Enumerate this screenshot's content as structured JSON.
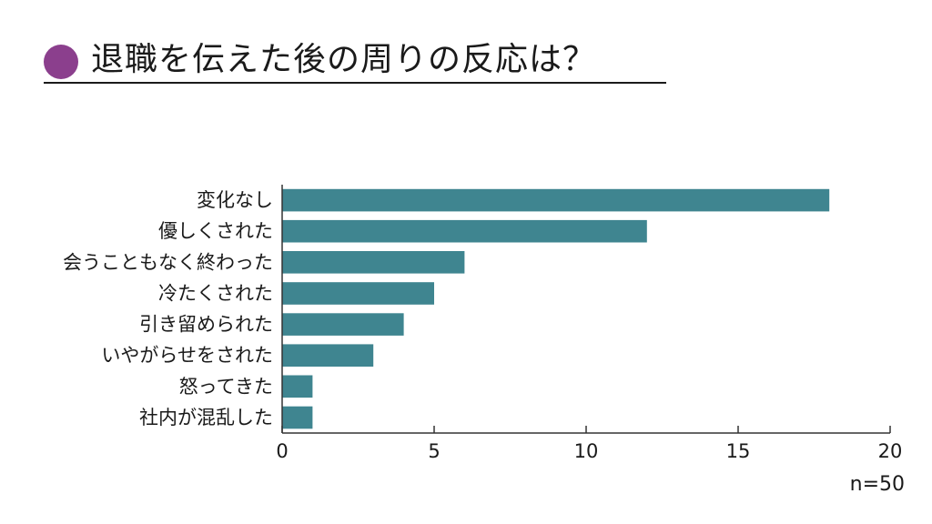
{
  "title": "退職を伝えた後の周りの反応は？",
  "colors": {
    "title_dot": "#8b3f8d",
    "bar": "#3f8590",
    "axis": "#333333"
  },
  "sample_size": "n=50",
  "chart_data": {
    "type": "bar",
    "orientation": "horizontal",
    "categories": [
      "変化なし",
      "優しくされた",
      "会うこともなく終わった",
      "冷たくされた",
      "引き留められた",
      "いやがらせをされた",
      "怒ってきた",
      "社内が混乱した"
    ],
    "values": [
      18,
      12,
      6,
      5,
      4,
      3,
      1,
      1
    ],
    "xlim": [
      0,
      20
    ],
    "xticks": [
      0,
      5,
      10,
      15,
      20
    ],
    "grid": false,
    "legend": false
  }
}
